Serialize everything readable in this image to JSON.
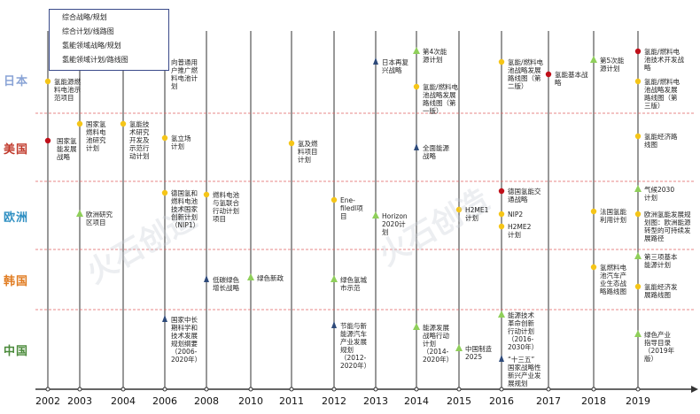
{
  "legend": [
    {
      "label": "综合战略/规划",
      "marker": "triangle-navy"
    },
    {
      "label": "综合计划/线路图",
      "marker": "triangle-green"
    },
    {
      "label": "氢能领域战略/规划",
      "marker": "circle-red"
    },
    {
      "label": "氢能领域计划/路线图",
      "marker": "circle-yellow"
    }
  ],
  "regions": [
    {
      "name": "日本",
      "color": "#8aa4d6"
    },
    {
      "name": "美国",
      "color": "#c0392b"
    },
    {
      "name": "欧洲",
      "color": "#2f8fc2"
    },
    {
      "name": "韩国",
      "color": "#e07b20"
    },
    {
      "name": "中国",
      "color": "#4a8a3a"
    }
  ],
  "years": [
    "2002",
    "2003",
    "2004",
    "2006",
    "2008",
    "2010",
    "2011",
    "2012",
    "2013",
    "2014",
    "2015",
    "2016",
    "2017",
    "2018",
    "2019"
  ],
  "events": [
    {
      "region": "日本",
      "year": "2002",
      "type": "hydrogen-plan",
      "text": "氢能源燃\n料电池示\n范项目"
    },
    {
      "region": "日本",
      "year": "2006",
      "type": "hydrogen-plan",
      "text": "向普通用\n户推广燃\n料电池计\n划"
    },
    {
      "region": "日本",
      "year": "2013",
      "type": "general-strategy",
      "text": "日本再复\n兴战略"
    },
    {
      "region": "日本",
      "year": "2014",
      "type": "general-plan",
      "text": "第4次能\n源计划"
    },
    {
      "region": "日本",
      "year": "2014",
      "type": "hydrogen-plan",
      "text": "氢能/燃料电\n池战略发展\n路线图（第\n一版）"
    },
    {
      "region": "日本",
      "year": "2016",
      "type": "hydrogen-plan",
      "text": "氢能/燃料电\n池战略发展\n路线图（第\n二版）"
    },
    {
      "region": "日本",
      "year": "2017",
      "type": "hydrogen-strategy",
      "text": "氢能基本战\n略"
    },
    {
      "region": "日本",
      "year": "2018",
      "type": "general-plan",
      "text": "第5次能\n源计划"
    },
    {
      "region": "日本",
      "year": "2019",
      "type": "hydrogen-strategy",
      "text": "氢能/燃料电\n池技术开发战\n略"
    },
    {
      "region": "日本",
      "year": "2019",
      "type": "hydrogen-plan",
      "text": "氢能/燃料电\n池战略发展\n路线图（第\n三版）"
    },
    {
      "region": "美国",
      "year": "2002",
      "type": "hydrogen-strategy",
      "text": "国家氢\n能发展\n战略"
    },
    {
      "region": "美国",
      "year": "2003",
      "type": "hydrogen-plan",
      "text": "国家氢\n燃料电\n池研究\n计划"
    },
    {
      "region": "美国",
      "year": "2004",
      "type": "hydrogen-plan",
      "text": "氢能技\n术研究\n开发及\n示范行\n动计划"
    },
    {
      "region": "美国",
      "year": "2006",
      "type": "hydrogen-plan",
      "text": "氢立场\n计划"
    },
    {
      "region": "美国",
      "year": "2011",
      "type": "hydrogen-plan",
      "text": "氢及燃\n料项目\n计划"
    },
    {
      "region": "美国",
      "year": "2014",
      "type": "general-strategy",
      "text": "全面能源\n战略"
    },
    {
      "region": "美国",
      "year": "2019",
      "type": "hydrogen-plan",
      "text": "氢能经济路\n线图"
    },
    {
      "region": "欧洲",
      "year": "2003",
      "type": "general-plan",
      "text": "欧洲研究\n区项目"
    },
    {
      "region": "欧洲",
      "year": "2006",
      "type": "hydrogen-plan",
      "text": "德国氢和\n燃料电池\n技术国家\n创新计划\n（NIP1）"
    },
    {
      "region": "欧洲",
      "year": "2008",
      "type": "hydrogen-plan",
      "text": "燃料电池\n与氢联合\n行动计划\n项目"
    },
    {
      "region": "欧洲",
      "year": "2012",
      "type": "hydrogen-plan",
      "text": "Ene-\nfiledl项\n目"
    },
    {
      "region": "欧洲",
      "year": "2013",
      "type": "general-plan",
      "text": "Horizon\n2020计\n划"
    },
    {
      "region": "欧洲",
      "year": "2015",
      "type": "hydrogen-plan",
      "text": "H2ME1\n计划"
    },
    {
      "region": "欧洲",
      "year": "2016",
      "type": "hydrogen-strategy",
      "text": "德国氢能交\n通战略"
    },
    {
      "region": "欧洲",
      "year": "2016",
      "type": "hydrogen-plan",
      "text": "NIP2"
    },
    {
      "region": "欧洲",
      "year": "2016",
      "type": "hydrogen-plan",
      "text": "H2ME2\n计划"
    },
    {
      "region": "欧洲",
      "year": "2018",
      "type": "hydrogen-plan",
      "text": "法国氢能\n利用计划"
    },
    {
      "region": "欧洲",
      "year": "2019",
      "type": "general-plan",
      "text": "气候2030\n计划"
    },
    {
      "region": "欧洲",
      "year": "2019",
      "type": "hydrogen-plan",
      "text": "欧洲氢能发展规\n划图：欧洲能源\n转型的可持续发\n展路径"
    },
    {
      "region": "韩国",
      "year": "2008",
      "type": "general-strategy",
      "text": "低碳绿色\n增长战略"
    },
    {
      "region": "韩国",
      "year": "2010",
      "type": "general-plan",
      "text": "绿色新政"
    },
    {
      "region": "韩国",
      "year": "2012",
      "type": "general-plan",
      "text": "绿色氢城\n市示范"
    },
    {
      "region": "韩国",
      "year": "2018",
      "type": "hydrogen-plan",
      "text": "氢燃料电\n池汽车产\n业生态战\n略路线图"
    },
    {
      "region": "韩国",
      "year": "2019",
      "type": "general-plan",
      "text": "第三项基本\n能源计划"
    },
    {
      "region": "韩国",
      "year": "2019",
      "type": "hydrogen-plan",
      "text": "氢能经济发\n展路线图"
    },
    {
      "region": "中国",
      "year": "2006",
      "type": "general-strategy",
      "text": "国家中长\n期科学和\n技术发展\n规划纲要\n（2006-\n2020年）"
    },
    {
      "region": "中国",
      "year": "2012",
      "type": "general-strategy",
      "text": "节能与新\n能源汽车\n产业发展\n规划\n（2012-\n2020年）"
    },
    {
      "region": "中国",
      "year": "2014",
      "type": "general-plan",
      "text": "能源发展\n战略行动\n计划\n（2014-\n2020年）"
    },
    {
      "region": "中国",
      "year": "2015",
      "type": "general-plan",
      "text": "中国制造\n2025"
    },
    {
      "region": "中国",
      "year": "2016",
      "type": "general-plan",
      "text": "能源技术\n革命创新\n行动计划\n（2016-\n2030年）"
    },
    {
      "region": "中国",
      "year": "2016",
      "type": "general-strategy",
      "text": "“十三五”\n国家战略性\n新兴产业发\n展规划"
    },
    {
      "region": "中国",
      "year": "2019",
      "type": "general-plan",
      "text": "绿色产业\n指导目录\n（2019年\n版）"
    }
  ],
  "colors": {
    "triangle-navy": "#2e4a7a",
    "triangle-green": "#8fcf5a",
    "circle-red": "#c0101a",
    "circle-yellow": "#f5c518",
    "axis": "#333333",
    "separator": "#e06060"
  },
  "watermark": "火石创造"
}
